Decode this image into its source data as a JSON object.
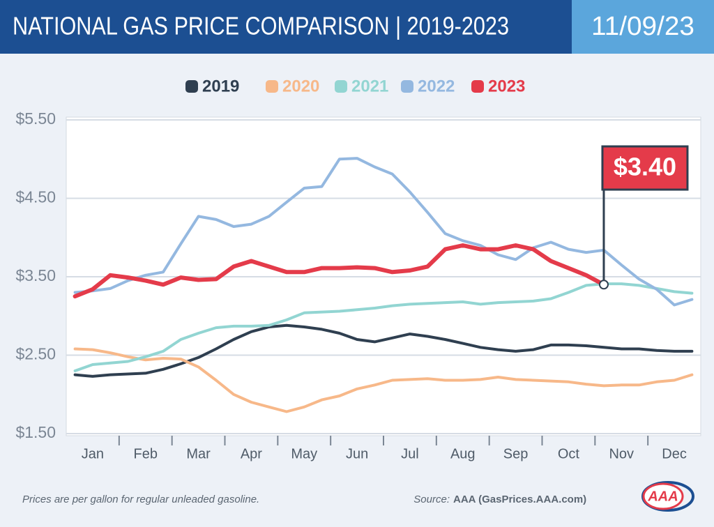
{
  "header": {
    "title": "NATIONAL GAS PRICE COMPARISON | 2019-2023",
    "date": "11/09/23"
  },
  "chart_data": {
    "type": "line",
    "categories": [
      null,
      "Jan",
      null,
      null,
      "Feb",
      null,
      null,
      "Mar",
      null,
      null,
      "Apr",
      null,
      null,
      "May",
      null,
      null,
      "Jun",
      null,
      null,
      "Jul",
      null,
      null,
      "Aug",
      null,
      null,
      "Sep",
      null,
      null,
      "Oct",
      null,
      null,
      "Nov",
      null,
      null,
      "Dec",
      null
    ],
    "ylim": [
      1.5,
      5.5
    ],
    "yticks": [
      {
        "value": 1.5,
        "label": "$1.50"
      },
      {
        "value": 2.5,
        "label": "$2.50"
      },
      {
        "value": 3.5,
        "label": "$3.50"
      },
      {
        "value": 4.5,
        "label": "$4.50"
      },
      {
        "value": 5.5,
        "label": "$5.50"
      }
    ],
    "grid": true,
    "series": [
      {
        "name": "2019",
        "color": "#2f3f50",
        "values": [
          2.25,
          2.23,
          2.25,
          2.26,
          2.27,
          2.32,
          2.39,
          2.47,
          2.58,
          2.7,
          2.8,
          2.86,
          2.88,
          2.86,
          2.83,
          2.78,
          2.7,
          2.67,
          2.72,
          2.77,
          2.74,
          2.7,
          2.65,
          2.6,
          2.57,
          2.55,
          2.57,
          2.63,
          2.63,
          2.62,
          2.6,
          2.58,
          2.58,
          2.56,
          2.55,
          2.55
        ]
      },
      {
        "name": "2020",
        "color": "#f7b889",
        "values": [
          2.58,
          2.57,
          2.53,
          2.48,
          2.44,
          2.46,
          2.45,
          2.35,
          2.18,
          2.0,
          1.9,
          1.84,
          1.78,
          1.84,
          1.93,
          1.98,
          2.07,
          2.12,
          2.18,
          2.19,
          2.2,
          2.18,
          2.18,
          2.19,
          2.22,
          2.19,
          2.18,
          2.17,
          2.16,
          2.13,
          2.11,
          2.12,
          2.12,
          2.16,
          2.18,
          2.25
        ]
      },
      {
        "name": "2021",
        "color": "#92d5d2",
        "values": [
          2.3,
          2.38,
          2.4,
          2.42,
          2.48,
          2.55,
          2.7,
          2.78,
          2.85,
          2.87,
          2.87,
          2.88,
          2.95,
          3.04,
          3.05,
          3.06,
          3.08,
          3.1,
          3.13,
          3.15,
          3.16,
          3.17,
          3.18,
          3.15,
          3.17,
          3.18,
          3.19,
          3.22,
          3.3,
          3.39,
          3.41,
          3.41,
          3.39,
          3.35,
          3.31,
          3.29
        ]
      },
      {
        "name": "2022",
        "color": "#94b8e0",
        "values": [
          3.3,
          3.32,
          3.35,
          3.45,
          3.52,
          3.56,
          3.92,
          4.27,
          4.23,
          4.14,
          4.17,
          4.27,
          4.45,
          4.63,
          4.65,
          5.0,
          5.01,
          4.9,
          4.81,
          4.58,
          4.32,
          4.05,
          3.96,
          3.9,
          3.78,
          3.72,
          3.87,
          3.94,
          3.85,
          3.81,
          3.84,
          3.65,
          3.47,
          3.34,
          3.14,
          3.21
        ]
      },
      {
        "name": "2023",
        "color": "#e43b4a",
        "values": [
          3.25,
          3.34,
          3.52,
          3.49,
          3.45,
          3.4,
          3.49,
          3.46,
          3.47,
          3.63,
          3.7,
          3.63,
          3.56,
          3.56,
          3.61,
          3.61,
          3.62,
          3.61,
          3.56,
          3.58,
          3.63,
          3.85,
          3.9,
          3.85,
          3.85,
          3.9,
          3.85,
          3.7,
          3.61,
          3.52,
          3.4,
          null,
          null,
          null,
          null,
          null
        ]
      }
    ],
    "callout": "$3.40"
  },
  "footer": {
    "note": "Prices are per gallon for regular unleaded gasoline.",
    "source_label": "Source:",
    "source": "AAA (GasPrices.AAA.com)",
    "logo": "AAA"
  }
}
